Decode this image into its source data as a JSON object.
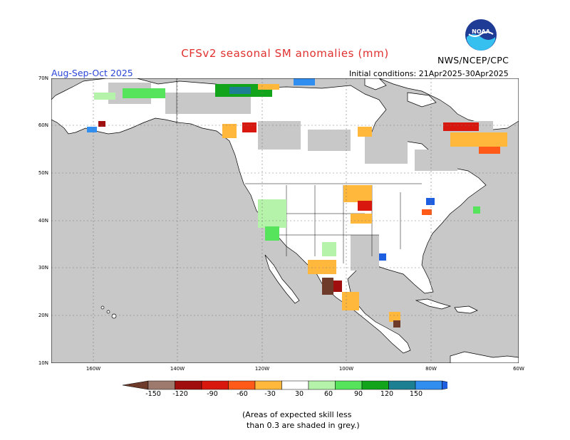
{
  "title": "CFSv2 seasonal SM anomalies (mm)",
  "season": "Aug-Sep-Oct 2025",
  "initial_conditions": "Initial conditions: 21Apr2025-30Apr2025",
  "org_label": "NWS/NCEP/CPC",
  "logo_text": "NOAA",
  "lat_labels": [
    "70N",
    "60N",
    "50N",
    "40N",
    "30N",
    "20N",
    "10N"
  ],
  "lon_labels": [
    "160W",
    "140W",
    "120W",
    "100W",
    "80W",
    "60W"
  ],
  "colorbar": {
    "labels": [
      "-150",
      "-120",
      "-90",
      "-60",
      "-30",
      "30",
      "60",
      "90",
      "120",
      "150"
    ],
    "colors": [
      "#6e3b2a",
      "#9e7a6e",
      "#a10e0e",
      "#d8180f",
      "#ff5a18",
      "#ffb73c",
      "#ffffff",
      "#b4f3a9",
      "#55e45c",
      "#12a41b",
      "#1d7f92",
      "#2f8ef0",
      "#1d5fe0"
    ]
  },
  "note_line1": "(Areas of expected skill less",
  "note_line2": "than 0.3 are shaded in grey.)",
  "colors": {
    "ocean": "#c8c8c8",
    "land": "#ffffff",
    "no_skill": "#c8c8c8",
    "title": "#e0302e",
    "season": "#2a46d8"
  }
}
